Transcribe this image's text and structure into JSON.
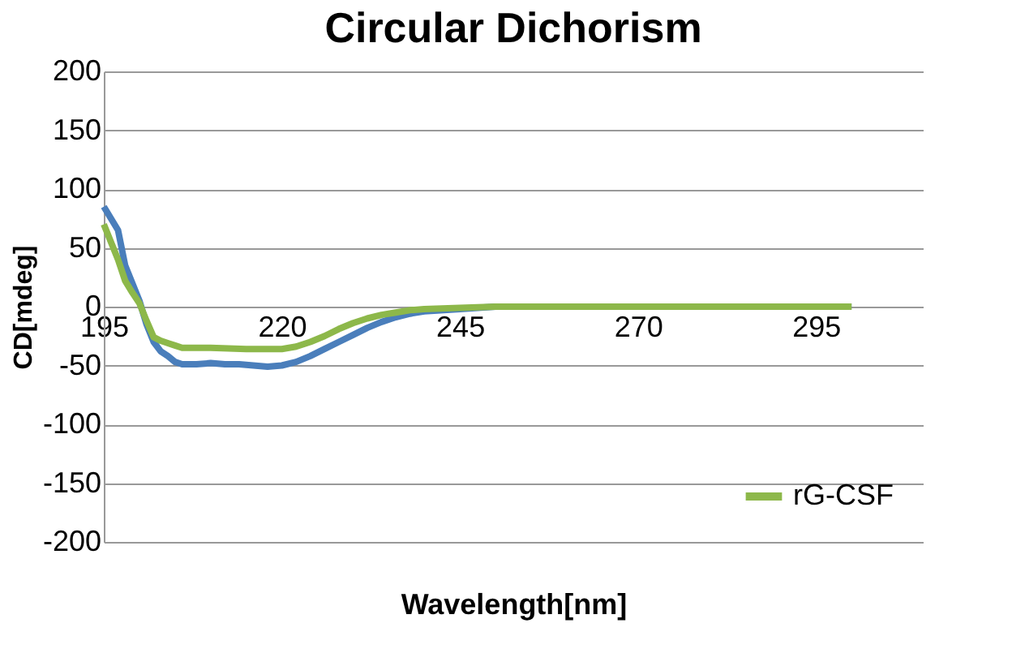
{
  "chart_data": {
    "type": "line",
    "title": "Circular Dichorism",
    "xlabel": "Wavelength[nm]",
    "ylabel": "CD[mdeg]",
    "xlim": [
      195,
      310
    ],
    "xticks": [
      195,
      220,
      245,
      270,
      295
    ],
    "ylim": [
      -200,
      200
    ],
    "yticks": [
      -200,
      -150,
      -100,
      -50,
      0,
      50,
      100,
      150,
      200
    ],
    "grid": "y",
    "legend": "bottom right",
    "line_style": "solid",
    "marker": "none",
    "series": [
      {
        "color": "#4a7ebb",
        "x": [
          195,
          197,
          198,
          199,
          200,
          201,
          202,
          203,
          204,
          205,
          206,
          208,
          210,
          212,
          214,
          216,
          218,
          220,
          222,
          224,
          226,
          228,
          230,
          232,
          234,
          236,
          238,
          240,
          245,
          250,
          255,
          300
        ],
        "values": [
          85,
          65,
          35,
          20,
          5,
          -15,
          -30,
          -38,
          -42,
          -47,
          -49,
          -49,
          -48,
          -49,
          -49,
          -50,
          -51,
          -50,
          -47,
          -42,
          -36,
          -30,
          -24,
          -18,
          -13,
          -9,
          -6,
          -4,
          -2,
          0,
          0,
          0
        ]
      },
      {
        "name": "rG-CSF",
        "color": "#8db84a",
        "x": [
          195,
          196,
          197,
          198,
          199,
          200,
          201,
          202,
          203,
          204,
          205,
          206,
          208,
          210,
          215,
          220,
          222,
          224,
          226,
          228,
          230,
          232,
          234,
          236,
          238,
          240,
          245,
          250,
          255,
          300
        ],
        "values": [
          70,
          55,
          40,
          22,
          12,
          3,
          -12,
          -26,
          -29,
          -31,
          -33,
          -35,
          -35,
          -35,
          -36,
          -36,
          -34,
          -30,
          -25,
          -19,
          -14,
          -10,
          -7,
          -5,
          -3,
          -2,
          -1,
          0,
          0,
          0
        ]
      }
    ]
  }
}
